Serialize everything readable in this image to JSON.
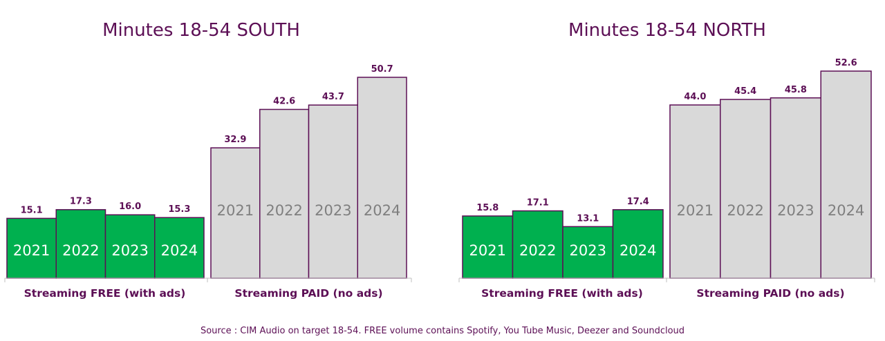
{
  "chart_data": [
    {
      "type": "bar",
      "title": "Minutes 18-54 SOUTH",
      "categories": [
        "Streaming FREE (with ads)",
        "Streaming PAID (no ads)"
      ],
      "series_labels": [
        "2021",
        "2022",
        "2023",
        "2024"
      ],
      "groups": [
        {
          "name": "Streaming FREE (with ads)",
          "years": [
            "2021",
            "2022",
            "2023",
            "2024"
          ],
          "values": [
            15.1,
            17.3,
            16.0,
            15.3
          ],
          "value_labels": [
            "15.1",
            "17.3",
            "16.0",
            "15.3"
          ],
          "color": "#00b04f"
        },
        {
          "name": "Streaming PAID (no ads)",
          "years": [
            "2021",
            "2022",
            "2023",
            "2024"
          ],
          "values": [
            32.9,
            42.6,
            43.7,
            50.7
          ],
          "value_labels": [
            "32.9",
            "42.6",
            "43.7",
            "50.7"
          ],
          "color": "#d9d9d9"
        }
      ],
      "ylim": [
        0,
        50.7
      ],
      "grid": false
    },
    {
      "type": "bar",
      "title": "Minutes 18-54 NORTH",
      "categories": [
        "Streaming FREE (with ads)",
        "Streaming PAID (no ads)"
      ],
      "series_labels": [
        "2021",
        "2022",
        "2023",
        "2024"
      ],
      "groups": [
        {
          "name": "Streaming FREE (with ads)",
          "years": [
            "2021",
            "2022",
            "2023",
            "2024"
          ],
          "values": [
            15.8,
            17.1,
            13.1,
            17.4
          ],
          "value_labels": [
            "15.8",
            "17.1",
            "13.1",
            "17.4"
          ],
          "color": "#00b04f"
        },
        {
          "name": "Streaming PAID (no ads)",
          "years": [
            "2021",
            "2022",
            "2023",
            "2024"
          ],
          "values": [
            44.0,
            45.4,
            45.8,
            52.6
          ],
          "value_labels": [
            "44.0",
            "45.4",
            "45.8",
            "52.6"
          ],
          "color": "#d9d9d9"
        }
      ],
      "ylim": [
        0,
        52.6
      ],
      "grid": false
    }
  ],
  "source": "Source : CIM Audio on target 18-54. FREE volume contains Spotify, You Tube Music, Deezer and Soundcloud",
  "colors": {
    "outline": "#5c0f55",
    "free": "#00b04f",
    "paid": "#d9d9d9"
  }
}
